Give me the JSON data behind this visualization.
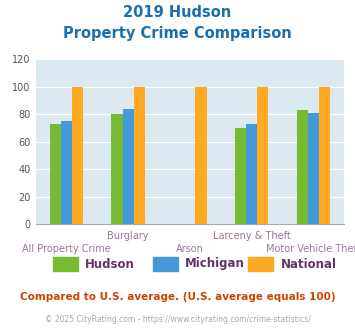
{
  "title_line1": "2019 Hudson",
  "title_line2": "Property Crime Comparison",
  "title_color": "#1a6faf",
  "hudson": [
    73,
    80,
    null,
    70,
    83
  ],
  "michigan": [
    75,
    84,
    null,
    73,
    81
  ],
  "national": [
    100,
    100,
    100,
    100,
    100
  ],
  "hudson_color": "#77bb33",
  "michigan_color": "#4499dd",
  "national_color": "#ffaa22",
  "ylim": [
    0,
    120
  ],
  "yticks": [
    0,
    20,
    40,
    60,
    80,
    100,
    120
  ],
  "bg_color": "#dce9f0",
  "legend_labels": [
    "Hudson",
    "Michigan",
    "National"
  ],
  "legend_label_color": "#663366",
  "footer_text": "Compared to U.S. average. (U.S. average equals 100)",
  "footer_color": "#cc4400",
  "copyright_text": "© 2025 CityRating.com - https://www.cityrating.com/crime-statistics/",
  "copyright_color": "#aaaaaa",
  "xlabel_color": "#997799",
  "bar_width": 0.18,
  "group_positions": [
    1,
    2,
    3,
    4,
    5
  ],
  "top_labels": {
    "1": "Burglary",
    "3": "Larceny & Theft"
  },
  "bottom_labels": {
    "0": "All Property Crime",
    "2": "Arson",
    "4": "Motor Vehicle Theft"
  }
}
